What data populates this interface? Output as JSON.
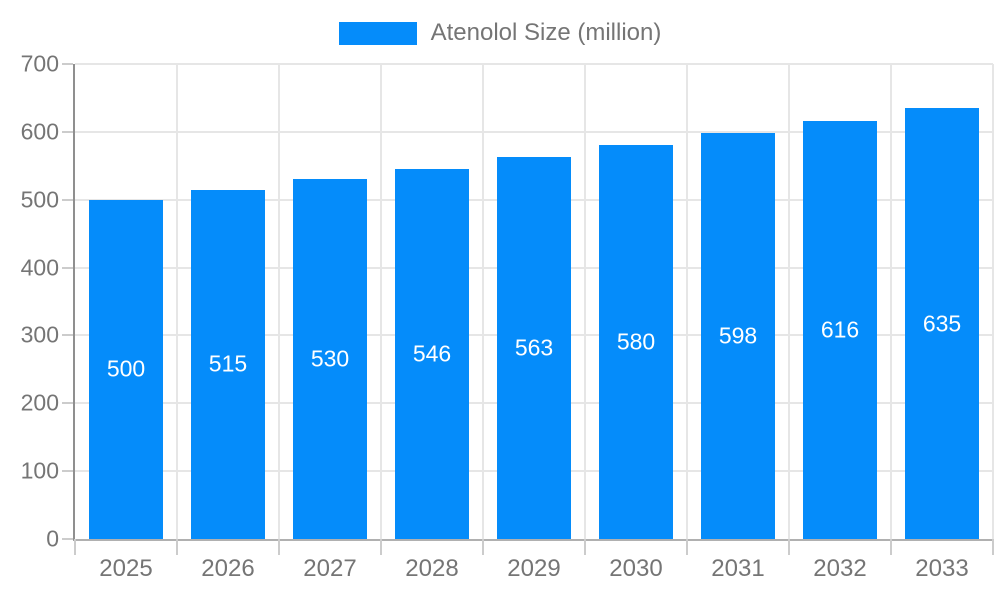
{
  "chart": {
    "legend": {
      "label": "Atenolol Size (million)"
    },
    "colors": {
      "bar": "#058cfa",
      "bar_label": "#ffffff",
      "axis_text": "#757575",
      "grid": "#e6e6e6",
      "y_axis_line": "#8f8f8f",
      "x_axis_line": "#b0b0b0",
      "tick": "#cccccc",
      "background": "#ffffff"
    }
  },
  "chart_data": {
    "type": "bar",
    "title": "",
    "series_name": "Atenolol Size (million)",
    "categories": [
      "2025",
      "2026",
      "2027",
      "2028",
      "2029",
      "2030",
      "2031",
      "2032",
      "2033"
    ],
    "values": [
      500,
      515,
      530,
      546,
      563,
      580,
      598,
      616,
      635
    ],
    "xlabel": "",
    "ylabel": "",
    "ylim": [
      0,
      700
    ],
    "yticks": [
      0,
      100,
      200,
      300,
      400,
      500,
      600,
      700
    ],
    "grid": true,
    "legend_position": "top",
    "value_label_position": "inside-middle",
    "bar_width_fraction": 0.72
  }
}
